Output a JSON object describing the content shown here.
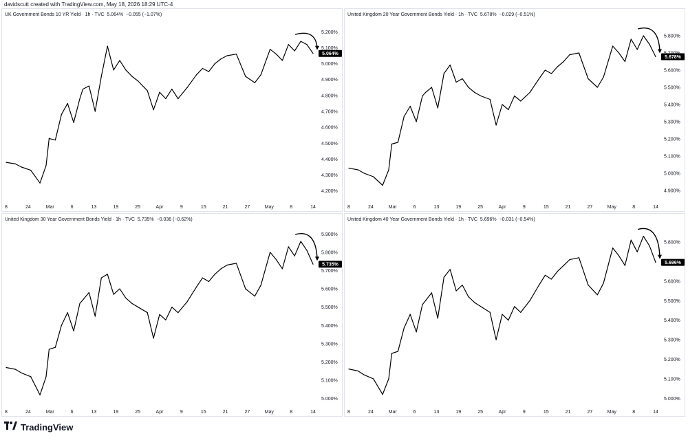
{
  "header": {
    "text": "davidscutt created with TradingView.com, May 18, 2026 18:29 UTC-4"
  },
  "footer": {
    "brand": "TradingView"
  },
  "chart_data": [
    {
      "type": "line",
      "title": "UK Government Bonds 10 YR Yield · 1h · TVC",
      "last_value_text": "5.064%",
      "change_text": "−0.055 (−1.07%)",
      "x_ticks": [
        "8",
        "24",
        "Mar",
        "6",
        "13",
        "19",
        "25",
        "Apr",
        "9",
        "15",
        "21",
        "27",
        "May",
        "8",
        "14"
      ],
      "y_ticks": [
        "5.200%",
        "5.100%",
        "5.000%",
        "4.900%",
        "4.800%",
        "4.700%",
        "4.600%",
        "4.500%",
        "4.400%",
        "4.300%",
        "4.200%"
      ],
      "ylim": [
        4.16,
        5.24
      ],
      "last_value": 5.064,
      "x": [
        0,
        3,
        5,
        8,
        11,
        13,
        14,
        16,
        18,
        20,
        22,
        24,
        25,
        27,
        29,
        31,
        33,
        35,
        37,
        39,
        41,
        43,
        46,
        48,
        50,
        52,
        54,
        56,
        59,
        62,
        64,
        66,
        68,
        70,
        72,
        75,
        78,
        81,
        83,
        86,
        88,
        90,
        92,
        94,
        96,
        98,
        100
      ],
      "values": [
        4.38,
        4.37,
        4.35,
        4.33,
        4.25,
        4.36,
        4.53,
        4.52,
        4.68,
        4.75,
        4.63,
        4.78,
        4.84,
        4.86,
        4.7,
        4.92,
        5.11,
        4.96,
        5.02,
        4.96,
        4.92,
        4.89,
        4.83,
        4.71,
        4.82,
        4.78,
        4.84,
        4.78,
        4.85,
        4.93,
        4.97,
        4.95,
        5.0,
        5.03,
        5.05,
        5.06,
        4.92,
        4.88,
        4.93,
        5.09,
        5.06,
        5.02,
        5.12,
        5.08,
        5.14,
        5.12,
        5.064
      ],
      "annotation": "down-arrow"
    },
    {
      "type": "line",
      "title": "United Kingdom 20 Year Government Bonds Yield · 1h · TVC",
      "last_value_text": "5.678%",
      "change_text": "−0.029 (−0.51%)",
      "x_ticks": [
        "8",
        "24",
        "Mar",
        "6",
        "13",
        "19",
        "25",
        "Apr",
        "9",
        "15",
        "21",
        "27",
        "May",
        "8",
        "14"
      ],
      "y_ticks": [
        "5.800%",
        "5.700%",
        "5.600%",
        "5.500%",
        "5.400%",
        "5.300%",
        "5.200%",
        "5.100%",
        "5.000%",
        "4.900%"
      ],
      "ylim": [
        4.86,
        5.86
      ],
      "last_value": 5.678,
      "x": [
        0,
        3,
        5,
        8,
        11,
        13,
        14,
        16,
        18,
        20,
        22,
        24,
        25,
        27,
        29,
        31,
        33,
        35,
        37,
        39,
        41,
        43,
        46,
        48,
        50,
        52,
        54,
        56,
        59,
        62,
        64,
        66,
        68,
        70,
        72,
        75,
        78,
        81,
        83,
        86,
        88,
        90,
        92,
        94,
        96,
        98,
        100
      ],
      "values": [
        5.03,
        5.02,
        5.0,
        4.98,
        4.93,
        5.02,
        5.17,
        5.18,
        5.33,
        5.39,
        5.3,
        5.45,
        5.47,
        5.5,
        5.38,
        5.58,
        5.63,
        5.53,
        5.55,
        5.5,
        5.47,
        5.45,
        5.43,
        5.28,
        5.4,
        5.37,
        5.45,
        5.42,
        5.47,
        5.55,
        5.6,
        5.58,
        5.62,
        5.65,
        5.69,
        5.7,
        5.55,
        5.5,
        5.56,
        5.74,
        5.7,
        5.65,
        5.78,
        5.72,
        5.8,
        5.75,
        5.678
      ],
      "annotation": "down-arrow"
    },
    {
      "type": "line",
      "title": "United Kingdom 30 Year Government Bonds Yield · 1h · TVC",
      "last_value_text": "5.735%",
      "change_text": "−0.036 (−0.62%)",
      "x_ticks": [
        "8",
        "24",
        "Mar",
        "6",
        "13",
        "19",
        "25",
        "Apr",
        "9",
        "15",
        "21",
        "27",
        "May",
        "8",
        "14"
      ],
      "y_ticks": [
        "5.900%",
        "5.800%",
        "5.700%",
        "5.600%",
        "5.500%",
        "5.400%",
        "5.300%",
        "5.200%",
        "5.100%",
        "5.000%"
      ],
      "ylim": [
        4.98,
        5.92
      ],
      "last_value": 5.735,
      "x": [
        0,
        3,
        5,
        8,
        11,
        13,
        14,
        16,
        18,
        20,
        22,
        24,
        25,
        27,
        29,
        31,
        33,
        35,
        37,
        39,
        41,
        43,
        46,
        48,
        50,
        52,
        54,
        56,
        59,
        62,
        64,
        66,
        68,
        70,
        72,
        75,
        78,
        81,
        83,
        86,
        88,
        90,
        92,
        94,
        96,
        98,
        100
      ],
      "values": [
        5.17,
        5.16,
        5.14,
        5.12,
        5.02,
        5.12,
        5.27,
        5.28,
        5.4,
        5.47,
        5.37,
        5.52,
        5.54,
        5.58,
        5.45,
        5.66,
        5.68,
        5.57,
        5.6,
        5.55,
        5.52,
        5.5,
        5.47,
        5.33,
        5.46,
        5.43,
        5.5,
        5.47,
        5.53,
        5.61,
        5.66,
        5.64,
        5.68,
        5.71,
        5.73,
        5.74,
        5.6,
        5.56,
        5.62,
        5.8,
        5.76,
        5.71,
        5.83,
        5.78,
        5.86,
        5.81,
        5.735
      ],
      "annotation": "down-arrow"
    },
    {
      "type": "line",
      "title": "United Kingdom 40 Year Government Bonds Yield · 1h · TVC",
      "last_value_text": "5.696%",
      "change_text": "−0.031 (−0.54%)",
      "x_ticks": [
        "8",
        "24",
        "Mar",
        "6",
        "13",
        "19",
        "25",
        "Apr",
        "9",
        "15",
        "21",
        "27",
        "May",
        "8",
        "14"
      ],
      "y_ticks": [
        "5.800%",
        "5.700%",
        "5.600%",
        "5.500%",
        "5.400%",
        "5.300%",
        "5.200%",
        "5.100%",
        "5.000%"
      ],
      "ylim": [
        4.98,
        5.86
      ],
      "last_value": 5.696,
      "x": [
        0,
        3,
        5,
        8,
        11,
        13,
        14,
        16,
        18,
        20,
        22,
        24,
        25,
        27,
        29,
        31,
        33,
        35,
        37,
        39,
        41,
        43,
        46,
        48,
        50,
        52,
        54,
        56,
        59,
        62,
        64,
        66,
        68,
        70,
        72,
        75,
        78,
        81,
        83,
        86,
        88,
        90,
        92,
        94,
        96,
        98,
        100
      ],
      "values": [
        5.15,
        5.14,
        5.12,
        5.1,
        5.02,
        5.1,
        5.23,
        5.24,
        5.36,
        5.43,
        5.34,
        5.48,
        5.5,
        5.54,
        5.41,
        5.62,
        5.66,
        5.55,
        5.58,
        5.52,
        5.49,
        5.47,
        5.44,
        5.3,
        5.43,
        5.4,
        5.47,
        5.44,
        5.5,
        5.58,
        5.63,
        5.61,
        5.65,
        5.68,
        5.71,
        5.72,
        5.58,
        5.53,
        5.59,
        5.77,
        5.73,
        5.68,
        5.81,
        5.75,
        5.83,
        5.78,
        5.696
      ],
      "annotation": "down-arrow"
    }
  ]
}
